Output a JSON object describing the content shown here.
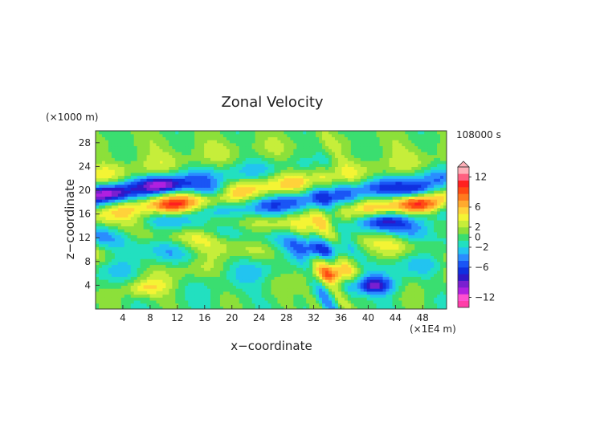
{
  "chart_data": {
    "type": "heatmap",
    "title": "Zonal Velocity",
    "xlabel": "x−coordinate",
    "ylabel": "z−coordinate",
    "x_unit": "(×1E4 m)",
    "y_unit": "(×1000 m)",
    "time_label": "108000 s",
    "xlim": [
      0,
      51.5
    ],
    "ylim": [
      0,
      30
    ],
    "x_ticks": [
      "4",
      "8",
      "12",
      "16",
      "20",
      "24",
      "28",
      "32",
      "36",
      "40",
      "44",
      "48"
    ],
    "y_ticks": [
      "4",
      "8",
      "12",
      "16",
      "20",
      "24",
      "28"
    ],
    "colorbar": {
      "min": -14,
      "max": 14,
      "labels": [
        "12",
        "6",
        "2",
        "0",
        "−2",
        "−6",
        "−12"
      ],
      "colors": [
        "#ff3da8",
        "#ff4fd0",
        "#b020e0",
        "#7a1fd0",
        "#3018c8",
        "#1030e0",
        "#1a55f5",
        "#2a8cff",
        "#22c4f0",
        "#22e0c0",
        "#3ade70",
        "#8ce03a",
        "#c6ee3a",
        "#f4f434",
        "#ffd23a",
        "#ffaa2e",
        "#ff7a1e",
        "#ff4a14",
        "#ff2020",
        "#ff6080",
        "#ffb0b8"
      ]
    },
    "features": [
      {
        "x": 2,
        "z": 19.5,
        "u": -6
      },
      {
        "x": 10,
        "z": 21,
        "u": -7
      },
      {
        "x": 11,
        "z": 17.5,
        "u": 5
      },
      {
        "x": 17,
        "z": 20,
        "u": -6
      },
      {
        "x": 18,
        "z": 15,
        "u": 5
      },
      {
        "x": 41,
        "z": 4,
        "u": -7
      },
      {
        "x": 42,
        "z": 15,
        "u": -6
      },
      {
        "x": 47,
        "z": 20,
        "u": -6
      },
      {
        "x": 47,
        "z": 17.5,
        "u": 5
      },
      {
        "x": 7,
        "z": 3.5,
        "u": 4
      },
      {
        "x": 33,
        "z": 10,
        "u": -4
      },
      {
        "x": 35,
        "z": 6,
        "u": 5
      }
    ]
  }
}
